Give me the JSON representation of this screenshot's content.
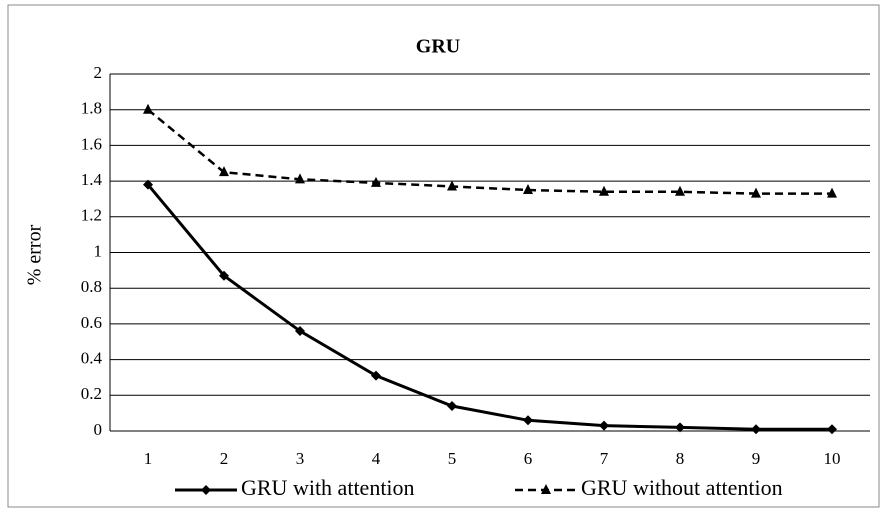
{
  "chart_data": {
    "type": "line",
    "title": "GRU",
    "y_label": "% error",
    "categories": [
      "1",
      "2",
      "3",
      "4",
      "5",
      "6",
      "7",
      "8",
      "9",
      "10"
    ],
    "series": [
      {
        "name": "GRU with attention",
        "color": "#000000",
        "dash": false,
        "marker": "diamond",
        "values": [
          1.38,
          0.87,
          0.56,
          0.31,
          0.14,
          0.06,
          0.03,
          0.02,
          0.01,
          0.01
        ]
      },
      {
        "name": "GRU without attention",
        "color": "#000000",
        "dash": true,
        "marker": "triangle",
        "values": [
          1.8,
          1.45,
          1.41,
          1.39,
          1.37,
          1.35,
          1.34,
          1.34,
          1.33,
          1.33
        ]
      }
    ],
    "ylim": [
      0,
      2
    ],
    "yticks": [
      0,
      0.2,
      0.4,
      0.6,
      0.8,
      1,
      1.2,
      1.4,
      1.6,
      1.8,
      2
    ],
    "grid": true,
    "legend": "bottom"
  }
}
